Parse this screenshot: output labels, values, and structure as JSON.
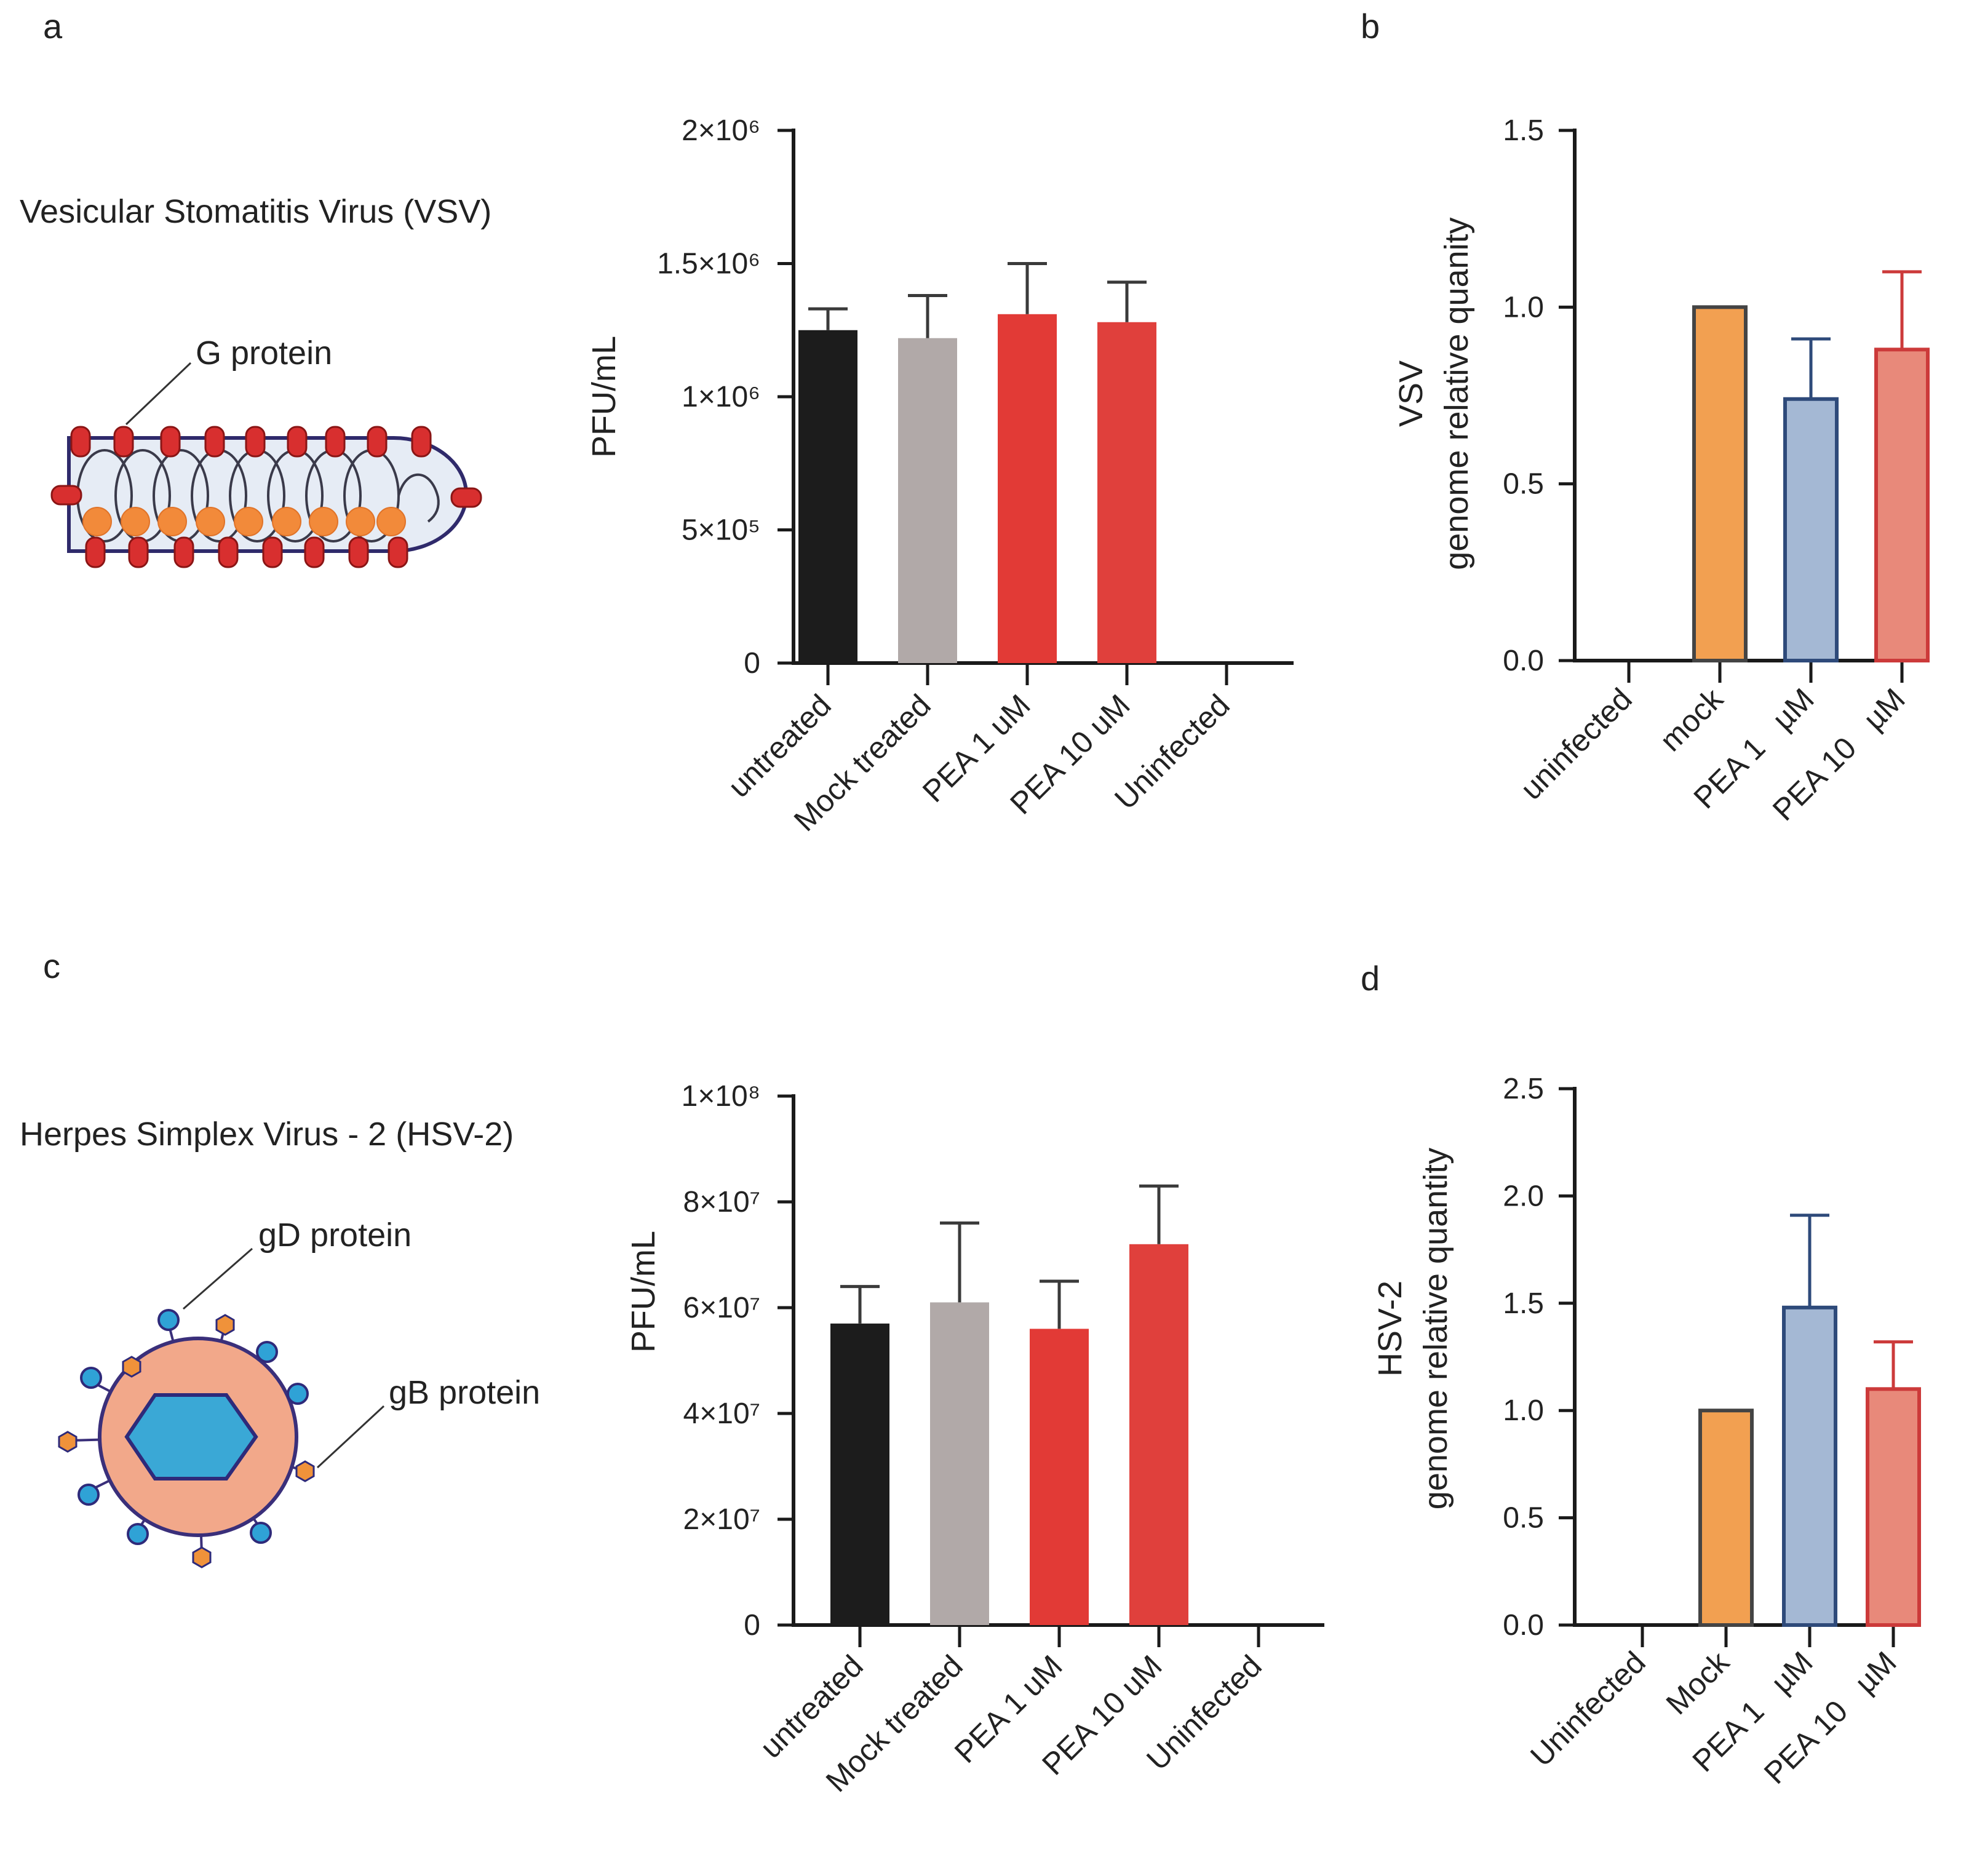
{
  "panels": {
    "a": {
      "letter": "a"
    },
    "b": {
      "letter": "b"
    },
    "c": {
      "letter": "c"
    },
    "d": {
      "letter": "d"
    }
  },
  "schematics": {
    "vsv": {
      "title": "Vesicular Stomatitis Virus (VSV)",
      "label": "G protein"
    },
    "hsv": {
      "title": "Herpes Simplex Virus - 2 (HSV-2)",
      "label_gd": "gD protein",
      "label_gb": "gB protein"
    }
  },
  "colors": {
    "black": "#1c1c1c",
    "gray": "#b1a9a8",
    "red": "#e23a36",
    "red2": "#e0403c",
    "orange": "#f2a051",
    "blue": "#a4b8d4",
    "salmon": "#e8897a",
    "blue_edge": "#2e4a7a",
    "salmon_edge": "#cc3a3a",
    "orange_edge": "#444444"
  },
  "chart_data": [
    {
      "id": "a-chart",
      "type": "bar",
      "title": "",
      "ylabel": "PFU/mL",
      "xlabel": "",
      "ylim": [
        0,
        2000000
      ],
      "ytick_values": [
        0,
        500000,
        1000000,
        1500000,
        2000000
      ],
      "ytick_labels": [
        "0",
        "5×10⁵",
        "1×10⁶",
        "1.5×10⁶",
        "2×10⁶"
      ],
      "categories": [
        "untreated",
        "Mock treated",
        "PEA 1 uM",
        "PEA 10 uM",
        "Uninfected"
      ],
      "values": [
        1250000,
        1220000,
        1310000,
        1280000,
        0
      ],
      "errors": [
        80000,
        160000,
        190000,
        150000,
        0
      ],
      "bar_colors": [
        "#1c1c1c",
        "#b1a9a8",
        "#e23a36",
        "#e0403c",
        "#ffffff"
      ],
      "edge_colors": [
        "none",
        "none",
        "none",
        "none",
        "none"
      ]
    },
    {
      "id": "b-chart",
      "type": "bar",
      "title": "",
      "ylabel": [
        "VSV",
        "genome relative quanity"
      ],
      "xlabel": "",
      "ylim": [
        0,
        1.5
      ],
      "ytick_values": [
        0,
        0.5,
        1.0,
        1.5
      ],
      "ytick_labels": [
        "0.0",
        "0.5",
        "1.0",
        "1.5"
      ],
      "categories": [
        "uninfected",
        "mock",
        "PEA 1   µM",
        "PEA 10   µM"
      ],
      "values": [
        0,
        1.0,
        0.74,
        0.88
      ],
      "errors": [
        0,
        0,
        0.17,
        0.22
      ],
      "bar_colors": [
        "#ffffff",
        "#f2a051",
        "#a4b8d4",
        "#e8897a"
      ],
      "edge_colors": [
        "none",
        "#444444",
        "#2e4a7a",
        "#cc3a3a"
      ]
    },
    {
      "id": "c-chart",
      "type": "bar",
      "title": "",
      "ylabel": "PFU/mL",
      "xlabel": "",
      "ylim": [
        0,
        100000000
      ],
      "ytick_values": [
        0,
        20000000,
        40000000,
        60000000,
        80000000,
        100000000
      ],
      "ytick_labels": [
        "0",
        "2×10⁷",
        "4×10⁷",
        "6×10⁷",
        "8×10⁷",
        "1×10⁸"
      ],
      "categories": [
        "untreated",
        "Mock treated",
        "PEA 1 uM",
        "PEA 10 uM",
        "Uninfected"
      ],
      "values": [
        57000000,
        61000000,
        56000000,
        72000000,
        0
      ],
      "errors": [
        7000000,
        15000000,
        9000000,
        11000000,
        0
      ],
      "bar_colors": [
        "#1c1c1c",
        "#b1a9a8",
        "#e23a36",
        "#e0403c",
        "#ffffff"
      ],
      "edge_colors": [
        "none",
        "none",
        "none",
        "none",
        "none"
      ]
    },
    {
      "id": "d-chart",
      "type": "bar",
      "title": "",
      "ylabel": [
        "HSV-2",
        "genome relative quantity"
      ],
      "xlabel": "",
      "ylim": [
        0,
        2.5
      ],
      "ytick_values": [
        0,
        0.5,
        1.0,
        1.5,
        2.0,
        2.5
      ],
      "ytick_labels": [
        "0.0",
        "0.5",
        "1.0",
        "1.5",
        "2.0",
        "2.5"
      ],
      "categories": [
        "Uninfected",
        "Mock",
        "PEA 1   µM",
        "PEA 10   µM"
      ],
      "values": [
        0,
        1.0,
        1.48,
        1.1
      ],
      "errors": [
        0,
        0,
        0.43,
        0.22
      ],
      "bar_colors": [
        "#ffffff",
        "#f2a051",
        "#a4b8d4",
        "#e8897a"
      ],
      "edge_colors": [
        "none",
        "#444444",
        "#2e4a7a",
        "#cc3a3a"
      ]
    }
  ]
}
